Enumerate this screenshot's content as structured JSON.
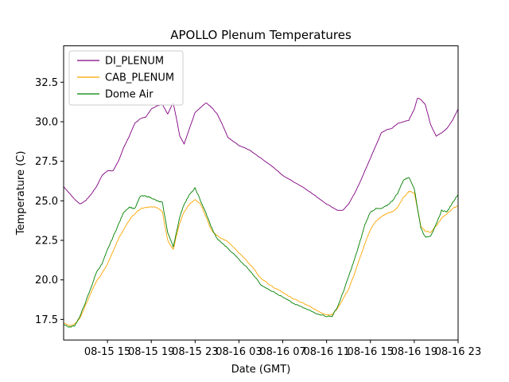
{
  "chart_data": {
    "type": "line",
    "title": "APOLLO Plenum Temperatures",
    "xlabel": "Date (GMT)",
    "ylabel": "Temperature (C)",
    "x_unit": "hours since 08-15 11:00 GMT",
    "xlim": [
      0,
      36
    ],
    "ylim": [
      16.2,
      34.8
    ],
    "grid": false,
    "legend_position": "top-left",
    "x_ticks": [
      {
        "value": 4,
        "label": "08-15 15"
      },
      {
        "value": 8,
        "label": "08-15 19"
      },
      {
        "value": 12,
        "label": "08-15 23"
      },
      {
        "value": 16,
        "label": "08-16 03"
      },
      {
        "value": 20,
        "label": "08-16 07"
      },
      {
        "value": 24,
        "label": "08-16 11"
      },
      {
        "value": 28,
        "label": "08-16 15"
      },
      {
        "value": 32,
        "label": "08-16 19"
      },
      {
        "value": 36,
        "label": "08-16 23"
      }
    ],
    "y_ticks": [
      {
        "value": 17.5,
        "label": "17.5"
      },
      {
        "value": 20.0,
        "label": "20.0"
      },
      {
        "value": 22.5,
        "label": "22.5"
      },
      {
        "value": 25.0,
        "label": "25.0"
      },
      {
        "value": 27.5,
        "label": "27.5"
      },
      {
        "value": 30.0,
        "label": "30.0"
      },
      {
        "value": 32.5,
        "label": "32.5"
      }
    ],
    "series": [
      {
        "name": "DI_PLENUM",
        "color": "#800080",
        "x": [
          0,
          0.5,
          1.0,
          1.5,
          2.0,
          2.5,
          3.0,
          3.5,
          4.0,
          4.5,
          5.0,
          5.5,
          6.0,
          6.5,
          7.0,
          7.5,
          8.0,
          8.5,
          9.0,
          9.5,
          10.0,
          10.3,
          10.6,
          11.0,
          11.5,
          12.0,
          12.5,
          13.0,
          13.5,
          14.0,
          14.5,
          15.0,
          16.0,
          17.0,
          18.0,
          19.0,
          20.0,
          21.0,
          22.0,
          23.0,
          24.0,
          25.0,
          25.5,
          26.0,
          26.5,
          27.0,
          27.5,
          28.0,
          28.5,
          29.0,
          29.5,
          30.0,
          30.5,
          31.0,
          31.5,
          32.0,
          32.3,
          32.6,
          33.0,
          33.5,
          34.0,
          34.5,
          35.0,
          35.5,
          36.0
        ],
        "values": [
          25.9,
          25.5,
          25.1,
          24.8,
          25.0,
          25.4,
          25.9,
          26.6,
          26.9,
          26.9,
          27.5,
          28.4,
          29.1,
          29.9,
          30.2,
          30.3,
          30.8,
          31.0,
          31.1,
          30.5,
          31.2,
          30.2,
          29.1,
          28.6,
          29.6,
          30.6,
          30.9,
          31.2,
          30.9,
          30.5,
          29.8,
          29.0,
          28.5,
          28.2,
          27.7,
          27.2,
          26.6,
          26.2,
          25.8,
          25.3,
          24.8,
          24.4,
          24.4,
          24.8,
          25.4,
          26.1,
          26.9,
          27.7,
          28.5,
          29.3,
          29.5,
          29.6,
          29.9,
          30.0,
          30.1,
          30.8,
          31.5,
          31.4,
          31.1,
          29.8,
          29.1,
          29.3,
          29.6,
          30.1,
          30.8
        ]
      },
      {
        "name": "CAB_PLENUM",
        "color": "#ffa500",
        "x": [
          0,
          0.5,
          1.0,
          1.5,
          2.0,
          2.5,
          3.0,
          3.5,
          4.0,
          4.5,
          5.0,
          5.5,
          6.0,
          6.5,
          7.0,
          7.5,
          8.0,
          8.5,
          9.0,
          9.5,
          10.0,
          10.3,
          10.6,
          11.0,
          11.5,
          12.0,
          12.5,
          13.0,
          13.5,
          14.0,
          14.5,
          15.0,
          16.0,
          17.0,
          18.0,
          19.0,
          20.0,
          21.0,
          22.0,
          23.0,
          24.0,
          24.5,
          25.0,
          25.5,
          26.0,
          26.5,
          27.0,
          27.5,
          28.0,
          28.5,
          29.0,
          29.5,
          30.0,
          30.5,
          31.0,
          31.5,
          32.0,
          32.3,
          32.6,
          33.0,
          33.5,
          34.0,
          34.5,
          35.0,
          35.5,
          36.0
        ],
        "values": [
          17.3,
          17.1,
          17.2,
          17.6,
          18.4,
          19.2,
          19.9,
          20.4,
          21.0,
          21.8,
          22.6,
          23.2,
          23.8,
          24.2,
          24.5,
          24.6,
          24.6,
          24.6,
          24.3,
          22.5,
          21.9,
          22.8,
          23.6,
          24.3,
          24.8,
          25.1,
          24.8,
          24.0,
          23.1,
          22.8,
          22.6,
          22.4,
          21.7,
          21.0,
          20.1,
          19.6,
          19.2,
          18.8,
          18.5,
          18.1,
          17.8,
          17.8,
          18.2,
          18.8,
          19.4,
          20.3,
          21.3,
          22.3,
          23.2,
          23.7,
          24.0,
          24.2,
          24.3,
          24.6,
          25.2,
          25.6,
          25.5,
          24.5,
          23.4,
          23.1,
          23.0,
          23.4,
          23.9,
          24.2,
          24.5,
          24.7
        ]
      },
      {
        "name": "Dome Air",
        "color": "#008000",
        "x": [
          0,
          0.5,
          1.0,
          1.5,
          2.0,
          2.5,
          3.0,
          3.5,
          4.0,
          4.5,
          5.0,
          5.5,
          6.0,
          6.5,
          7.0,
          7.5,
          8.0,
          8.5,
          9.0,
          9.5,
          10.0,
          10.3,
          10.6,
          11.0,
          11.5,
          12.0,
          12.5,
          13.0,
          13.5,
          14.0,
          14.5,
          15.0,
          16.0,
          17.0,
          18.0,
          19.0,
          20.0,
          21.0,
          22.0,
          23.0,
          24.0,
          24.5,
          25.0,
          25.5,
          26.0,
          26.5,
          27.0,
          27.5,
          28.0,
          28.5,
          29.0,
          29.5,
          30.0,
          30.5,
          31.0,
          31.5,
          32.0,
          32.3,
          32.6,
          33.0,
          33.5,
          34.0,
          34.5,
          35.0,
          35.5,
          36.0
        ],
        "values": [
          17.2,
          17.0,
          17.1,
          17.7,
          18.6,
          19.5,
          20.5,
          21.0,
          21.9,
          22.7,
          23.5,
          24.3,
          24.6,
          24.5,
          25.3,
          25.3,
          25.2,
          25.0,
          24.9,
          23.0,
          22.1,
          23.0,
          24.0,
          24.8,
          25.4,
          25.8,
          25.0,
          24.2,
          23.3,
          22.6,
          22.3,
          22.0,
          21.3,
          20.6,
          19.7,
          19.3,
          18.9,
          18.5,
          18.2,
          17.9,
          17.7,
          17.7,
          18.3,
          19.2,
          20.2,
          21.2,
          22.3,
          23.5,
          24.3,
          24.5,
          24.5,
          24.7,
          25.0,
          25.5,
          26.3,
          26.5,
          25.8,
          24.5,
          23.3,
          22.7,
          22.8,
          23.5,
          24.4,
          24.3,
          24.9,
          25.4
        ]
      }
    ]
  }
}
